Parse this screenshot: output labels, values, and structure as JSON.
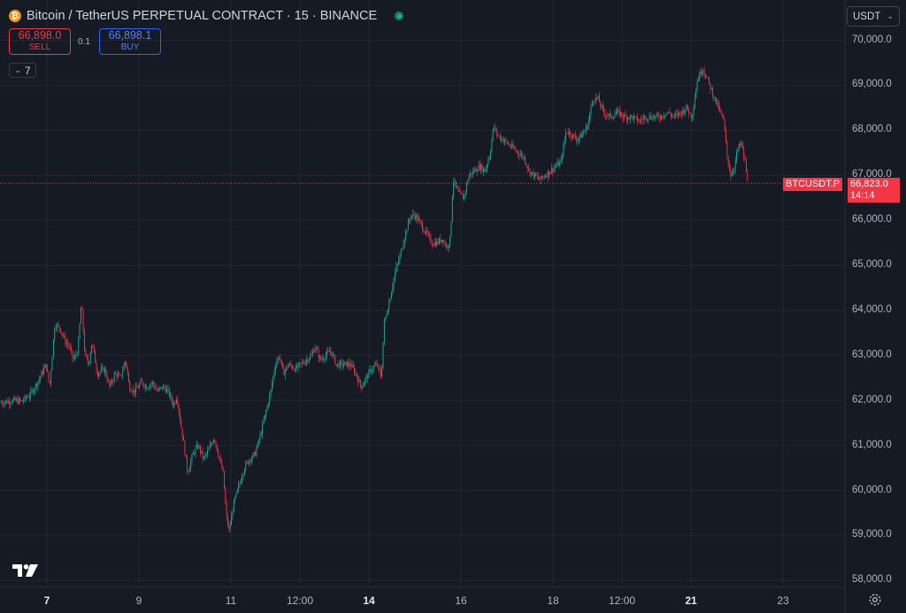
{
  "header": {
    "coin_glyph": "₿",
    "title": "Bitcoin / TetherUS PERPETUAL CONTRACT · 15 · BINANCE"
  },
  "trade": {
    "sell_price": "66,898.0",
    "sell_label": "SELL",
    "spread": "0.1",
    "buy_price": "66,898.1",
    "buy_label": "BUY"
  },
  "indicators": {
    "count": "7"
  },
  "currency": {
    "selected": "USDT"
  },
  "last_price": {
    "symbol": "BTCUSDT.P",
    "price": "66,823.0",
    "countdown": "14:14",
    "color": "#f23645"
  },
  "colors": {
    "up": "#22ab94",
    "down": "#f23645",
    "background": "#161a25",
    "grid": "#232632"
  },
  "icons": {
    "logo": "tradingview-logo-icon",
    "settings": "gear-icon",
    "live": "live-status-dot-icon"
  },
  "chart_data": {
    "type": "candlestick",
    "ylim": [
      57800,
      70300
    ],
    "y_tick_labels": [
      "70,000.0",
      "69,000.0",
      "68,000.0",
      "67,000.0",
      "66,000.0",
      "65,000.0",
      "64,000.0",
      "63,000.0",
      "62,000.0",
      "61,000.0",
      "60,000.0",
      "59,000.0",
      "58,000.0"
    ],
    "x_ticks": [
      {
        "label": "7",
        "bold": true
      },
      {
        "label": "9",
        "bold": false
      },
      {
        "label": "11",
        "bold": false
      },
      {
        "label": "12:00",
        "bold": false
      },
      {
        "label": "14",
        "bold": true
      },
      {
        "label": "16",
        "bold": false
      },
      {
        "label": "18",
        "bold": false
      },
      {
        "label": "12:00",
        "bold": false
      },
      {
        "label": "21",
        "bold": true
      },
      {
        "label": "23",
        "bold": false
      }
    ],
    "x_tick_index": [
      53,
      157,
      261,
      339,
      417,
      521,
      625,
      703,
      781,
      885
    ],
    "price_path": [
      [
        0,
        61950
      ],
      [
        15,
        62000
      ],
      [
        25,
        61980
      ],
      [
        35,
        62150
      ],
      [
        45,
        62500
      ],
      [
        52,
        62800
      ],
      [
        56,
        62300
      ],
      [
        62,
        63700
      ],
      [
        68,
        63600
      ],
      [
        74,
        63300
      ],
      [
        78,
        63200
      ],
      [
        83,
        62900
      ],
      [
        88,
        63100
      ],
      [
        92,
        64200
      ],
      [
        96,
        63000
      ],
      [
        100,
        62800
      ],
      [
        104,
        63300
      ],
      [
        110,
        62600
      ],
      [
        118,
        62700
      ],
      [
        124,
        62300
      ],
      [
        130,
        62600
      ],
      [
        136,
        62500
      ],
      [
        142,
        62900
      ],
      [
        146,
        62300
      ],
      [
        152,
        62200
      ],
      [
        160,
        62400
      ],
      [
        166,
        62300
      ],
      [
        172,
        62400
      ],
      [
        178,
        62200
      ],
      [
        184,
        62300
      ],
      [
        190,
        62200
      ],
      [
        196,
        61900
      ],
      [
        200,
        62100
      ],
      [
        204,
        61500
      ],
      [
        208,
        61000
      ],
      [
        212,
        60400
      ],
      [
        218,
        60800
      ],
      [
        224,
        61000
      ],
      [
        230,
        60700
      ],
      [
        236,
        60900
      ],
      [
        242,
        61200
      ],
      [
        248,
        60700
      ],
      [
        252,
        60400
      ],
      [
        256,
        59400
      ],
      [
        259,
        59100
      ],
      [
        264,
        59700
      ],
      [
        270,
        60100
      ],
      [
        276,
        60500
      ],
      [
        282,
        60700
      ],
      [
        288,
        60800
      ],
      [
        294,
        61200
      ],
      [
        300,
        61700
      ],
      [
        306,
        62200
      ],
      [
        311,
        62800
      ],
      [
        316,
        63000
      ],
      [
        320,
        62600
      ],
      [
        326,
        62800
      ],
      [
        334,
        62700
      ],
      [
        340,
        62800
      ],
      [
        346,
        62900
      ],
      [
        352,
        63000
      ],
      [
        356,
        63200
      ],
      [
        362,
        62900
      ],
      [
        368,
        63000
      ],
      [
        374,
        63100
      ],
      [
        380,
        62800
      ],
      [
        388,
        62800
      ],
      [
        396,
        62800
      ],
      [
        402,
        62600
      ],
      [
        408,
        62300
      ],
      [
        414,
        62500
      ],
      [
        420,
        62700
      ],
      [
        426,
        62800
      ],
      [
        431,
        62500
      ],
      [
        434,
        63700
      ],
      [
        440,
        64200
      ],
      [
        446,
        64800
      ],
      [
        452,
        65200
      ],
      [
        458,
        65700
      ],
      [
        464,
        66100
      ],
      [
        470,
        66100
      ],
      [
        476,
        65900
      ],
      [
        482,
        65700
      ],
      [
        488,
        65500
      ],
      [
        494,
        65500
      ],
      [
        500,
        65600
      ],
      [
        505,
        65400
      ],
      [
        509,
        65600
      ],
      [
        512,
        66900
      ],
      [
        518,
        66600
      ],
      [
        524,
        66500
      ],
      [
        530,
        67000
      ],
      [
        536,
        67100
      ],
      [
        542,
        67200
      ],
      [
        548,
        67100
      ],
      [
        554,
        67500
      ],
      [
        558,
        68100
      ],
      [
        562,
        67900
      ],
      [
        568,
        67800
      ],
      [
        574,
        67700
      ],
      [
        580,
        67600
      ],
      [
        586,
        67500
      ],
      [
        592,
        67400
      ],
      [
        598,
        67100
      ],
      [
        604,
        67000
      ],
      [
        610,
        66900
      ],
      [
        616,
        67000
      ],
      [
        622,
        67100
      ],
      [
        628,
        67200
      ],
      [
        634,
        67300
      ],
      [
        640,
        68000
      ],
      [
        646,
        67900
      ],
      [
        652,
        67800
      ],
      [
        658,
        67900
      ],
      [
        664,
        68100
      ],
      [
        670,
        68700
      ],
      [
        676,
        68700
      ],
      [
        682,
        68400
      ],
      [
        690,
        68300
      ],
      [
        698,
        68400
      ],
      [
        706,
        68300
      ],
      [
        714,
        68300
      ],
      [
        722,
        68200
      ],
      [
        730,
        68300
      ],
      [
        738,
        68300
      ],
      [
        746,
        68300
      ],
      [
        754,
        68400
      ],
      [
        762,
        68300
      ],
      [
        770,
        68400
      ],
      [
        776,
        68500
      ],
      [
        782,
        68300
      ],
      [
        788,
        69100
      ],
      [
        794,
        69400
      ],
      [
        800,
        69100
      ],
      [
        806,
        68800
      ],
      [
        812,
        68500
      ],
      [
        818,
        68200
      ],
      [
        822,
        67400
      ],
      [
        826,
        67000
      ],
      [
        830,
        67200
      ],
      [
        834,
        67600
      ],
      [
        838,
        67700
      ],
      [
        842,
        67300
      ],
      [
        845,
        66823
      ]
    ]
  }
}
